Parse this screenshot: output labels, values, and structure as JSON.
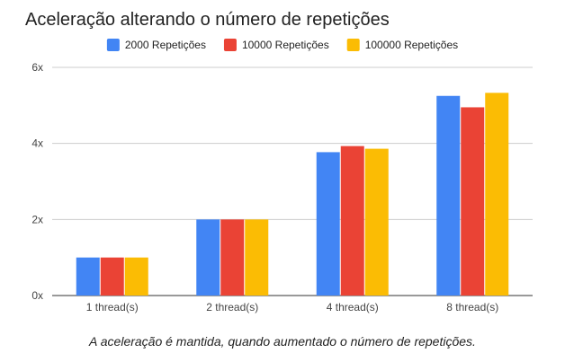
{
  "caption": "A aceleração é mantida, quando aumentado o número de repetições.",
  "chart_data": {
    "type": "bar",
    "title": "Aceleração alterando o número de repetições",
    "xlabel": "",
    "ylabel": "",
    "categories": [
      "1 thread(s)",
      "2 thread(s)",
      "4 thread(s)",
      "8 thread(s)"
    ],
    "series": [
      {
        "name": "2000 Repetições",
        "color": "#4285f4",
        "values": [
          1.0,
          2.0,
          3.77,
          5.25
        ]
      },
      {
        "name": "10000 Repetições",
        "color": "#ea4335",
        "values": [
          1.0,
          2.0,
          3.93,
          4.95
        ]
      },
      {
        "name": "100000 Repetições",
        "color": "#fbbc04",
        "values": [
          1.0,
          2.0,
          3.86,
          5.33
        ]
      }
    ],
    "ylim": [
      0,
      6
    ],
    "yticks": [
      0,
      2,
      4,
      6
    ],
    "ytick_labels": [
      "0x",
      "2x",
      "4x",
      "6x"
    ],
    "grid": true,
    "legend_position": "top-center"
  }
}
